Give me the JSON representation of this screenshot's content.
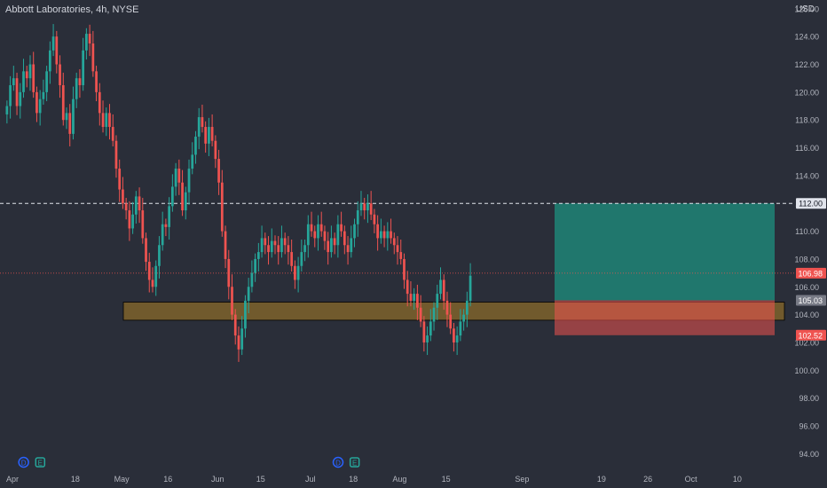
{
  "header": {
    "title": "Abbott Laboratories, 4h, NYSE",
    "currency": "USD"
  },
  "colors": {
    "background": "#2a2e39",
    "up": "#26a69a",
    "down": "#ef5350",
    "target": "#1e8a7a",
    "stop": "#ef5350",
    "zone": "#8a6a2a",
    "axis_text": "#b2b5be"
  },
  "chart_data": {
    "type": "candlestick",
    "title": "Abbott Laboratories, 4h, NYSE",
    "ylabel": "USD",
    "ylim": [
      93,
      126.5
    ],
    "y_ticks": [
      94,
      96,
      98,
      100,
      102,
      104,
      106,
      108,
      110,
      112,
      114,
      116,
      118,
      120,
      122,
      124,
      126
    ],
    "y_tick_labels": [
      "94.00",
      "96.00",
      "98.00",
      "100.00",
      "102.00",
      "104.00",
      "106.00",
      "108.00",
      "110.00",
      "112.00",
      "114.00",
      "116.00",
      "118.00",
      "120.00",
      "122.00",
      "124.00",
      "126.00"
    ],
    "x_labels": [
      {
        "label": "Apr",
        "bar": 0
      },
      {
        "label": "18",
        "bar": 19
      },
      {
        "label": "May",
        "bar": 33
      },
      {
        "label": "16",
        "bar": 47
      },
      {
        "label": "Jun",
        "bar": 62
      },
      {
        "label": "15",
        "bar": 75
      },
      {
        "label": "Jul",
        "bar": 90
      },
      {
        "label": "18",
        "bar": 103
      },
      {
        "label": "Aug",
        "bar": 117
      },
      {
        "label": "15",
        "bar": 131
      },
      {
        "label": "Sep",
        "bar": 154
      },
      {
        "label": "19",
        "bar": 178
      },
      {
        "label": "26",
        "bar": 192
      },
      {
        "label": "Oct",
        "bar": 205
      },
      {
        "label": "10",
        "bar": 219
      }
    ],
    "close_series": [
      119,
      120.5,
      121,
      119,
      120,
      121.5,
      121,
      122,
      120,
      118.5,
      119.5,
      120,
      121.5,
      123,
      124,
      122,
      120.5,
      118,
      118.5,
      117,
      119.5,
      121,
      120.5,
      123,
      124.2,
      123.5,
      121.5,
      120,
      118.5,
      117.5,
      118.5,
      117.5,
      116.5,
      114.5,
      113,
      112,
      111.5,
      110.2,
      111.2,
      112.5,
      111.5,
      109.5,
      107.8,
      106.5,
      106,
      107.5,
      109,
      110.5,
      110.3,
      111.8,
      113.2,
      114.5,
      113.5,
      111.5,
      112.8,
      114.5,
      115.5,
      116.8,
      118.2,
      117.5,
      116.3,
      117.5,
      116.5,
      115.2,
      113.5,
      110,
      108,
      106,
      104,
      102.5,
      101.5,
      103,
      105,
      106,
      107,
      108,
      108.5,
      109.5,
      109,
      108.5,
      109.3,
      109,
      108.5,
      109.5,
      109,
      108.5,
      107.5,
      106.5,
      107.5,
      108.5,
      109,
      110.5,
      110,
      109.5,
      110.5,
      110,
      109.3,
      108.5,
      109.5,
      109,
      110.5,
      110,
      109,
      108.5,
      109.5,
      110.5,
      111.5,
      112,
      111.5,
      112,
      111.2,
      110.5,
      109.5,
      110,
      109.5,
      110,
      109.5,
      109,
      108.5,
      108,
      106.5,
      105.5,
      105,
      105.5,
      104.5,
      103.5,
      102,
      102.5,
      103.5,
      104.5,
      105.5,
      106.5,
      105,
      104,
      103,
      102,
      102.5,
      103.5,
      104,
      105,
      106.8
    ],
    "current_price": 106.98,
    "levels": [
      {
        "label": "112.00",
        "value": 112.0,
        "style": "dashed"
      },
      {
        "label": "106.98",
        "value": 106.98,
        "style": "dotted"
      },
      {
        "label": "105.03",
        "value": 105.03
      },
      {
        "label": "102.52",
        "value": 102.52
      }
    ],
    "zones": [
      {
        "name": "support",
        "from": 103.6,
        "to": 104.9
      },
      {
        "name": "target",
        "from": 105.03,
        "to": 112.0
      },
      {
        "name": "stop",
        "from": 102.52,
        "to": 105.03
      }
    ],
    "event_markers": [
      {
        "label": "D",
        "bar": 5
      },
      {
        "label": "E",
        "bar": 10
      },
      {
        "label": "D",
        "bar": 100
      },
      {
        "label": "E",
        "bar": 105
      }
    ]
  }
}
